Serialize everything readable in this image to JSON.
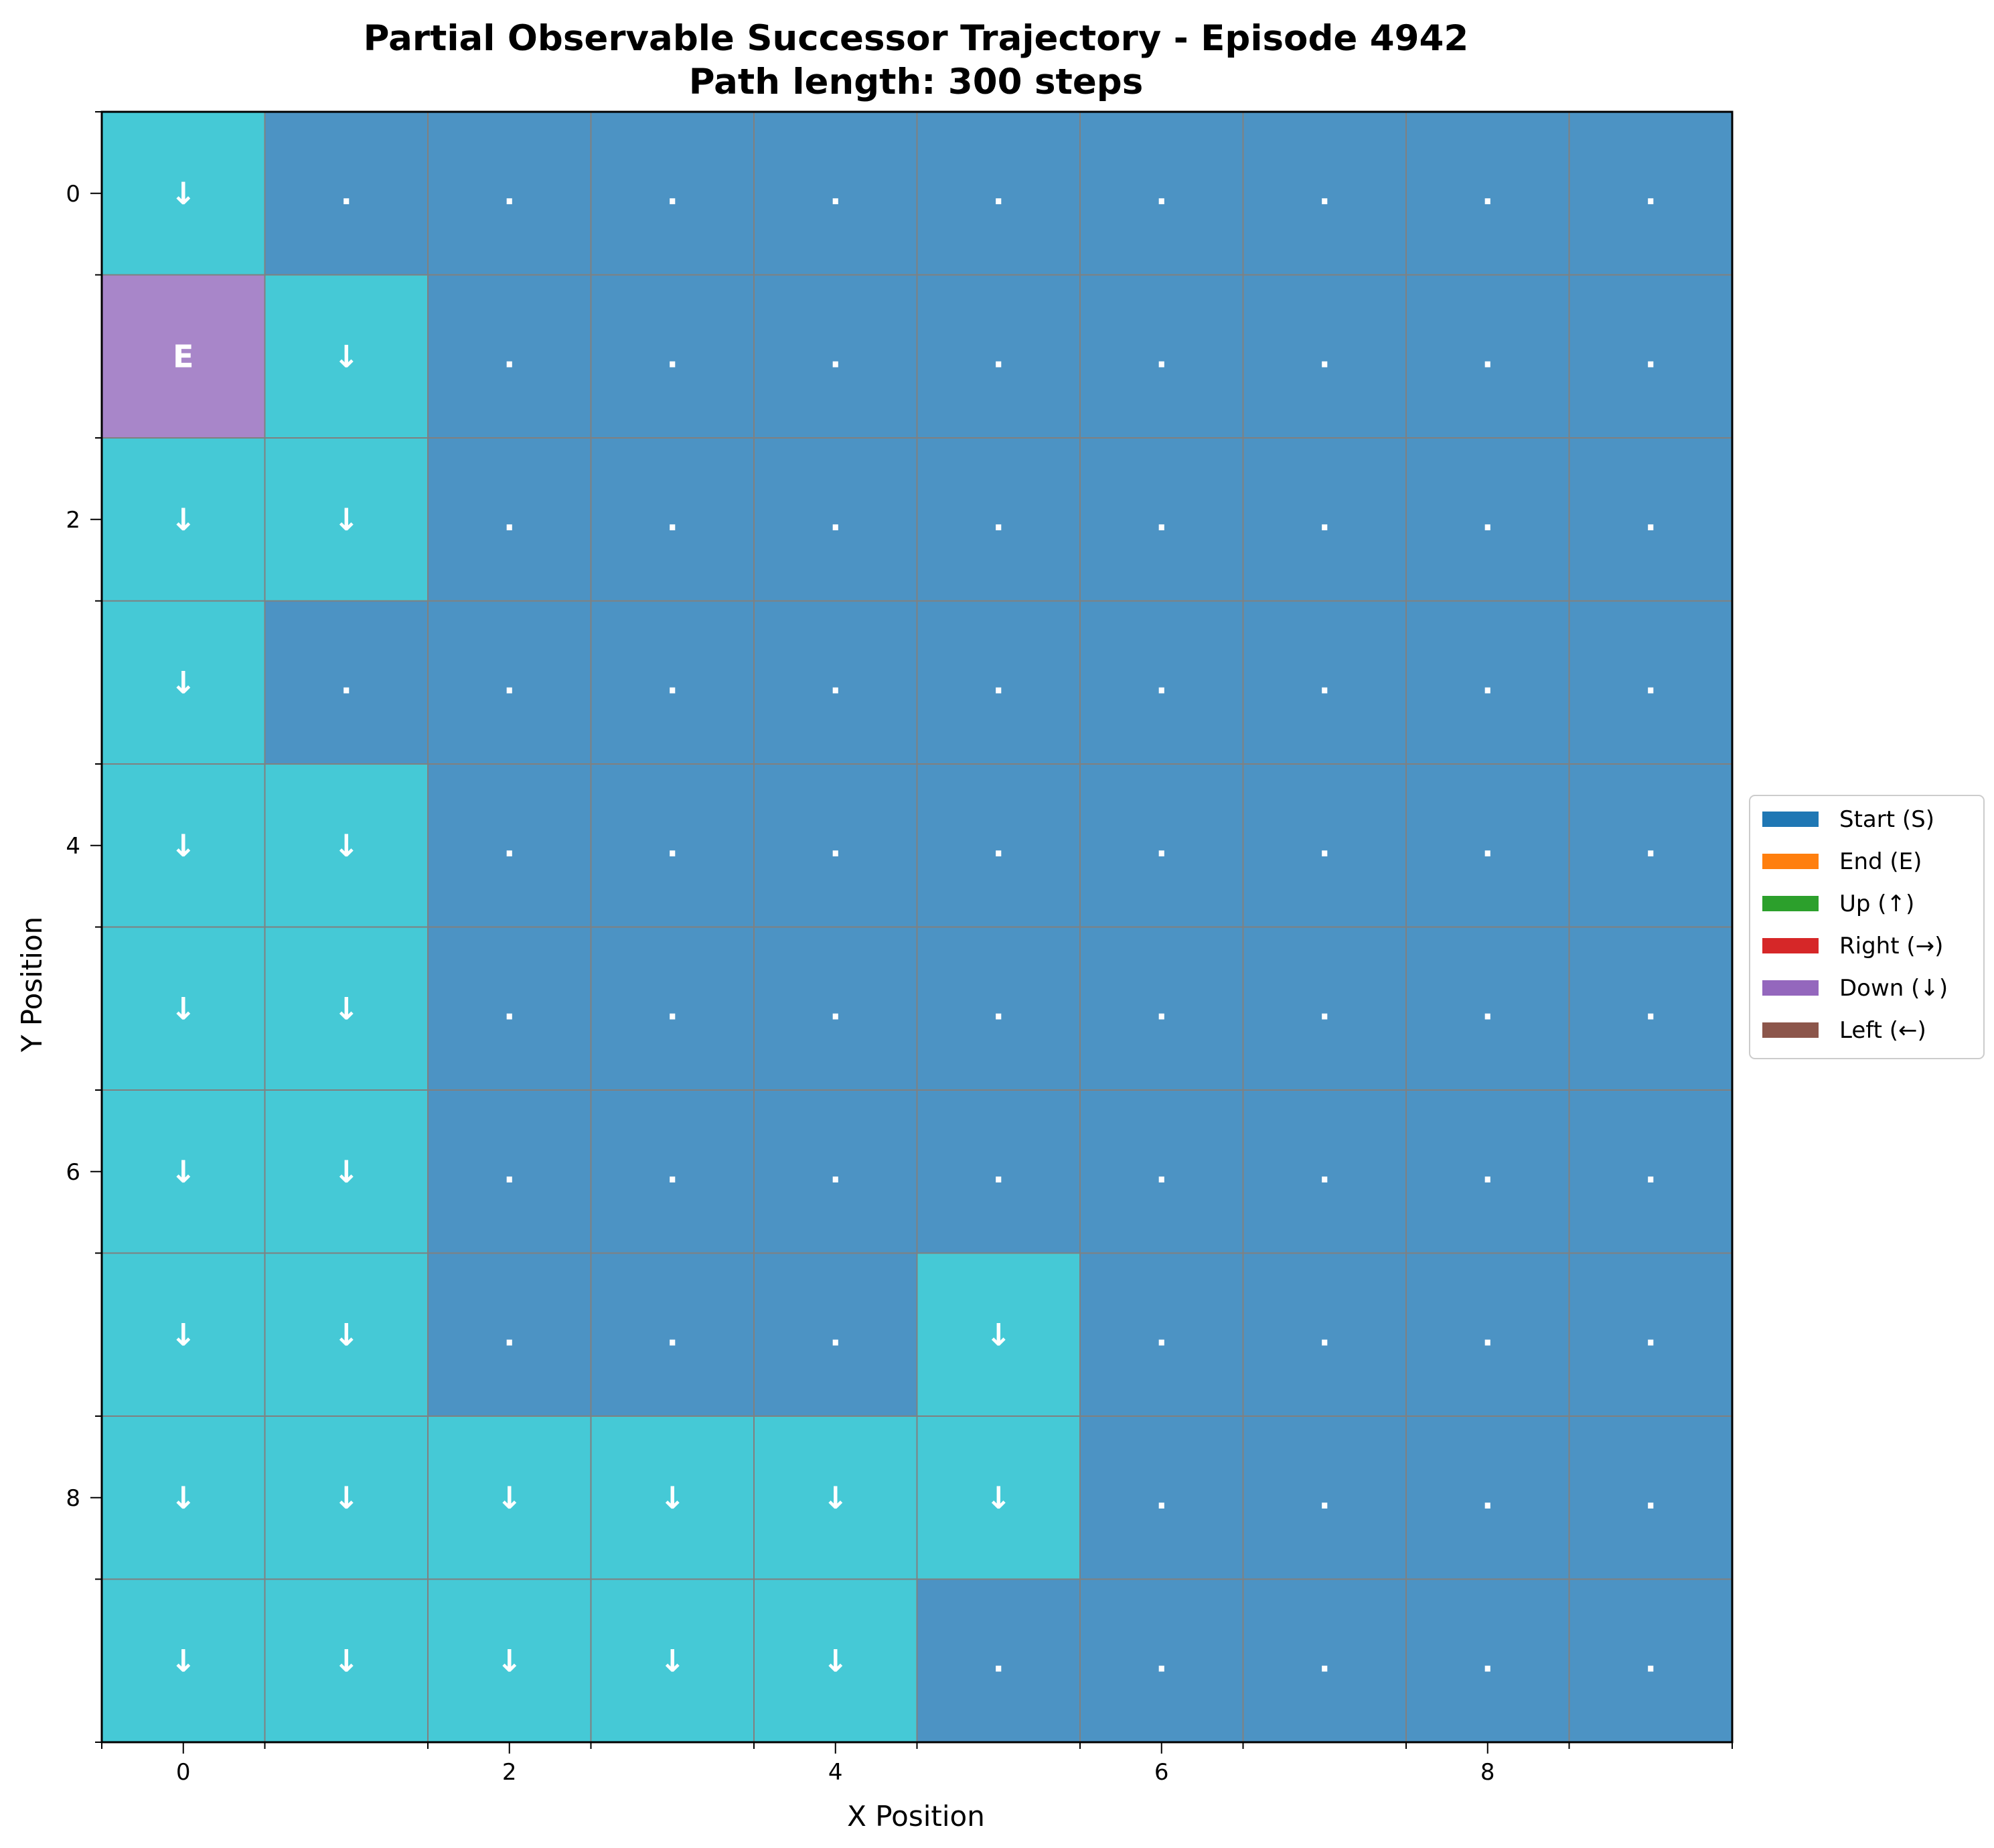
{
  "chart_data": {
    "type": "heatmap",
    "title": "Partial Observable Successor Trajectory - Episode 4942",
    "subtitle": "Path length: 300 steps",
    "xlabel": "X Position",
    "ylabel": "Y Position",
    "x_ticks": [
      "0",
      "2",
      "4",
      "6",
      "8"
    ],
    "y_ticks": [
      "0",
      "2",
      "4",
      "6",
      "8"
    ],
    "x_range": [
      -0.5,
      9.5
    ],
    "y_range": [
      -0.5,
      9.5
    ],
    "grid_size": [
      10,
      10
    ],
    "legend_position": "center-right, outside plot",
    "legend": [
      {
        "label": "Start (S)",
        "color": "#1f77b4"
      },
      {
        "label": "End (E)",
        "color": "#ff7f0e"
      },
      {
        "label": "Up (↑)",
        "color": "#2ca02c"
      },
      {
        "label": "Right (→)",
        "color": "#d62728"
      },
      {
        "label": "Down (↓)",
        "color": "#9467bd"
      },
      {
        "label": "Left (←)",
        "color": "#8c564b"
      }
    ],
    "colors": {
      "unvisited": "#4c93c4",
      "visited": "#45c9d6",
      "end": "#a886c9",
      "grid_line": "#808080"
    },
    "cells": [
      [
        "↓",
        ".",
        ".",
        ".",
        ".",
        ".",
        ".",
        ".",
        ".",
        "."
      ],
      [
        "E",
        "↓",
        ".",
        ".",
        ".",
        ".",
        ".",
        ".",
        ".",
        "."
      ],
      [
        "↓",
        "↓",
        ".",
        ".",
        ".",
        ".",
        ".",
        ".",
        ".",
        "."
      ],
      [
        "↓",
        ".",
        ".",
        ".",
        ".",
        ".",
        ".",
        ".",
        ".",
        "."
      ],
      [
        "↓",
        "↓",
        ".",
        ".",
        ".",
        ".",
        ".",
        ".",
        ".",
        "."
      ],
      [
        "↓",
        "↓",
        ".",
        ".",
        ".",
        ".",
        ".",
        ".",
        ".",
        "."
      ],
      [
        "↓",
        "↓",
        ".",
        ".",
        ".",
        ".",
        ".",
        ".",
        ".",
        "."
      ],
      [
        "↓",
        "↓",
        ".",
        ".",
        ".",
        "↓",
        ".",
        ".",
        ".",
        "."
      ],
      [
        "↓",
        "↓",
        "↓",
        "↓",
        "↓",
        "↓",
        ".",
        ".",
        ".",
        "."
      ],
      [
        "↓",
        "↓",
        "↓",
        "↓",
        "↓",
        ".",
        ".",
        ".",
        ".",
        "."
      ]
    ]
  }
}
